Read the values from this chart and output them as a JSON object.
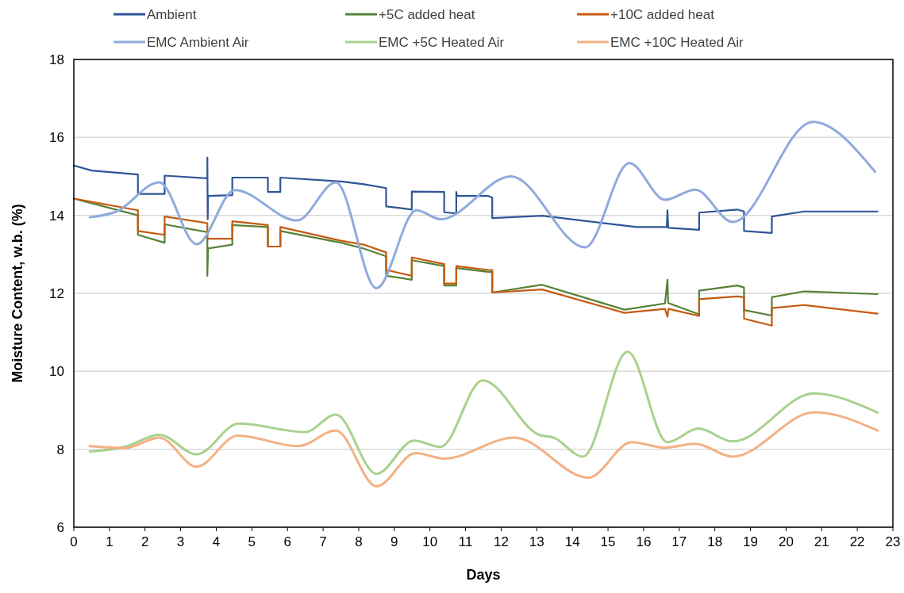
{
  "chart_data": {
    "type": "line",
    "xlabel": "Days",
    "ylabel": "Moisture Content, w.b. (%)",
    "xlim": [
      0,
      23
    ],
    "xticks": [
      0,
      1,
      2,
      3,
      4,
      5,
      6,
      7,
      8,
      9,
      10,
      11,
      12,
      13,
      14,
      15,
      16,
      17,
      18,
      19,
      20,
      21,
      22,
      23
    ],
    "ylim": [
      6,
      18
    ],
    "yticks": [
      6,
      8,
      10,
      12,
      14,
      16,
      18
    ],
    "grid": "y",
    "legend": "top",
    "marker": "none",
    "line_style": "solid",
    "series": [
      {
        "name": "Ambient",
        "color": "#2f5597",
        "x": [
          0,
          0.5,
          1.8,
          1.8,
          2.55,
          2.55,
          3.75,
          3.75,
          3.76,
          3.77,
          4.45,
          4.45,
          5.45,
          5.45,
          5.8,
          5.8,
          7.5,
          8.14,
          8.77,
          8.77,
          9.49,
          9.49,
          10.4,
          10.4,
          10.74,
          10.74,
          10.76,
          11.63,
          11.75,
          11.75,
          13.15,
          15.8,
          16.65,
          16.67,
          16.69,
          17.56,
          17.56,
          18.63,
          18.82,
          18.82,
          19.6,
          19.6,
          20.5,
          22.57
        ],
        "values": [
          15.28,
          15.15,
          15.05,
          14.55,
          14.55,
          15.02,
          14.95,
          15.48,
          13.9,
          14.5,
          14.52,
          14.97,
          14.97,
          14.6,
          14.6,
          14.97,
          14.87,
          14.8,
          14.7,
          14.23,
          14.15,
          14.61,
          14.6,
          14.08,
          14.05,
          14.6,
          14.5,
          14.5,
          14.45,
          13.93,
          13.99,
          13.7,
          13.7,
          14.13,
          13.68,
          13.63,
          14.07,
          14.15,
          14.1,
          13.6,
          13.55,
          13.97,
          14.1,
          14.1
        ]
      },
      {
        "name": "+5C added heat",
        "color": "#548235",
        "x": [
          0,
          1.8,
          1.8,
          2.55,
          2.55,
          3.75,
          3.75,
          3.77,
          4.45,
          4.45,
          5.45,
          5.45,
          5.8,
          5.8,
          7.5,
          8.14,
          8.77,
          8.77,
          9.49,
          9.49,
          10.4,
          10.4,
          10.74,
          10.74,
          11.63,
          11.75,
          11.75,
          13.15,
          15.46,
          16.6,
          16.67,
          16.69,
          17.56,
          17.56,
          18.63,
          18.82,
          18.82,
          19.6,
          19.6,
          20.5,
          22.57
        ],
        "values": [
          14.43,
          14.0,
          13.5,
          13.3,
          13.77,
          13.57,
          12.45,
          13.15,
          13.25,
          13.75,
          13.7,
          13.2,
          13.2,
          13.6,
          13.3,
          13.15,
          12.95,
          12.45,
          12.35,
          12.85,
          12.7,
          12.2,
          12.2,
          12.65,
          12.55,
          12.55,
          12.02,
          12.22,
          11.58,
          11.74,
          12.35,
          11.75,
          11.46,
          12.07,
          12.2,
          12.15,
          11.57,
          11.43,
          11.9,
          12.05,
          11.98
        ]
      },
      {
        "name": "+10C added heat",
        "color": "#c55a11",
        "x": [
          0,
          1.8,
          1.8,
          2.55,
          2.55,
          3.75,
          3.75,
          4.45,
          4.45,
          5.45,
          5.45,
          5.8,
          5.8,
          7.5,
          8.14,
          8.77,
          8.77,
          9.49,
          9.49,
          10.4,
          10.4,
          10.74,
          10.74,
          11.63,
          11.75,
          11.75,
          13.15,
          15.46,
          16.6,
          16.67,
          16.7,
          17.56,
          17.56,
          18.63,
          18.82,
          18.82,
          19.6,
          19.6,
          20.5,
          22.57
        ],
        "values": [
          14.43,
          14.13,
          13.6,
          13.5,
          13.97,
          13.8,
          13.4,
          13.4,
          13.85,
          13.75,
          13.2,
          13.2,
          13.7,
          13.35,
          13.25,
          13.05,
          12.6,
          12.45,
          12.92,
          12.75,
          12.25,
          12.25,
          12.7,
          12.6,
          12.6,
          12.02,
          12.1,
          11.5,
          11.6,
          11.4,
          11.6,
          11.42,
          11.85,
          11.92,
          11.9,
          11.35,
          11.17,
          11.62,
          11.7,
          11.48
        ]
      },
      {
        "name": "EMC Ambient Air",
        "color": "#8faadc",
        "x": [
          0.45,
          1.2,
          2.4,
          3.45,
          4.52,
          6.27,
          7.36,
          8.5,
          9.62,
          10.3,
          12.28,
          14.36,
          15.6,
          16.6,
          17.45,
          18.5,
          20.75,
          22.5
        ],
        "values": [
          13.95,
          14.1,
          14.85,
          13.26,
          14.65,
          13.87,
          14.85,
          12.13,
          14.13,
          13.9,
          15.0,
          13.18,
          15.34,
          14.4,
          14.66,
          13.83,
          16.4,
          15.12
        ]
      },
      {
        "name": "EMC +5C Heated Air",
        "color": "#a9d18e",
        "x": [
          0.45,
          1.43,
          2.4,
          3.45,
          4.63,
          6.5,
          7.36,
          8.5,
          9.55,
          10.3,
          11.48,
          13.07,
          13.47,
          14.3,
          15.55,
          16.67,
          17.54,
          18.5,
          20.78,
          22.57
        ],
        "values": [
          7.94,
          8.06,
          8.37,
          7.87,
          8.66,
          8.44,
          8.89,
          7.37,
          8.22,
          8.06,
          9.77,
          8.37,
          8.3,
          7.81,
          10.5,
          8.18,
          8.53,
          8.2,
          9.43,
          8.94
        ]
      },
      {
        "name": "EMC +10C Heated Air",
        "color": "#f4b183",
        "x": [
          0.45,
          1.43,
          2.4,
          3.45,
          4.6,
          6.3,
          7.36,
          8.5,
          9.6,
          10.4,
          12.37,
          14.45,
          15.66,
          16.6,
          17.45,
          18.5,
          20.8,
          22.57
        ],
        "values": [
          8.08,
          8.03,
          8.3,
          7.55,
          8.35,
          8.08,
          8.48,
          7.05,
          7.9,
          7.76,
          8.3,
          7.27,
          8.18,
          8.04,
          8.14,
          7.81,
          8.95,
          8.48
        ]
      }
    ]
  }
}
